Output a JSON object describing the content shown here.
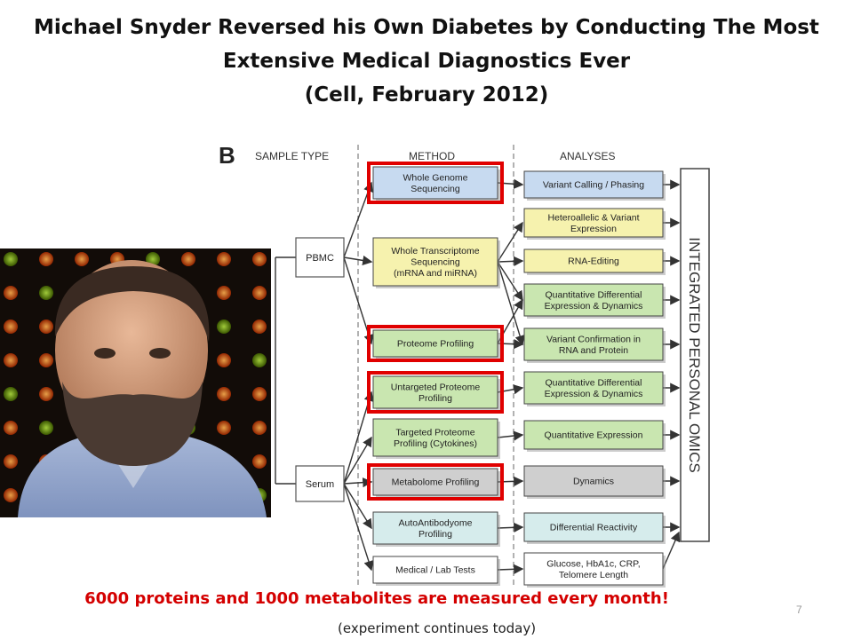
{
  "slide": {
    "title_line1": "Michael Snyder Reversed his Own Diabetes by Conducting The Most",
    "title_line2": "Extensive Medical Diagnostics Ever",
    "title_line3": "(Cell,  February 2012)",
    "bottom_text": "6000 proteins and 1000 metabolites are measured every month!",
    "bottom_note": "(experiment  continues today)",
    "page_number": "7"
  },
  "diagram": {
    "panel_letter": "B",
    "header_sample": "SAMPLE TYPE",
    "header_method": "METHOD",
    "header_analyses": "ANALYSES",
    "integrated_label": "INTEGRATED PERSONAL OMICS",
    "samples": [
      {
        "label": "PBMC"
      },
      {
        "label": "Serum"
      }
    ],
    "methods": [
      {
        "lines": [
          "Whole Genome",
          "Sequencing"
        ],
        "fill": "#c7daf0",
        "highlight": true
      },
      {
        "lines": [
          "Whole Transcriptome",
          "Sequencing",
          "(mRNA and miRNA)"
        ],
        "fill": "#f6f2ae",
        "highlight": false
      },
      {
        "lines": [
          "Proteome Profiling"
        ],
        "fill": "#c9e6b0",
        "highlight": true
      },
      {
        "lines": [
          "Untargeted Proteome",
          "Profiling"
        ],
        "fill": "#c9e6b0",
        "highlight": true
      },
      {
        "lines": [
          "Targeted Proteome",
          "Profiling (Cytokines)"
        ],
        "fill": "#c9e6b0",
        "highlight": false
      },
      {
        "lines": [
          "Metabolome Profiling"
        ],
        "fill": "#cfcfcf",
        "highlight": true
      },
      {
        "lines": [
          "AutoAntibodyome",
          "Profiling"
        ],
        "fill": "#d6ecec",
        "highlight": false
      },
      {
        "lines": [
          "Medical / Lab Tests"
        ],
        "fill": "#ffffff",
        "highlight": false
      }
    ],
    "analyses": [
      {
        "lines": [
          "Variant Calling / Phasing"
        ],
        "fill": "#c7daf0"
      },
      {
        "lines": [
          "Heteroallelic & Variant",
          "Expression"
        ],
        "fill": "#f6f2ae"
      },
      {
        "lines": [
          "RNA-Editing"
        ],
        "fill": "#f6f2ae"
      },
      {
        "lines": [
          "Quantitative Differential",
          "Expression & Dynamics"
        ],
        "fill": "#c9e6b0"
      },
      {
        "lines": [
          "Variant Confirmation in",
          "RNA and Protein"
        ],
        "fill": "#c9e6b0"
      },
      {
        "lines": [
          "Quantitative Differential",
          "Expression & Dynamics"
        ],
        "fill": "#c9e6b0"
      },
      {
        "lines": [
          "Quantitative Expression"
        ],
        "fill": "#c9e6b0"
      },
      {
        "lines": [
          "Dynamics"
        ],
        "fill": "#cfcfcf"
      },
      {
        "lines": [
          "Differential Reactivity"
        ],
        "fill": "#d6ecec"
      },
      {
        "lines": [
          "Glucose, HbA1c, CRP,",
          "Telomere Length"
        ],
        "fill": "#ffffff"
      }
    ],
    "colors": {
      "highlight": "#e00000",
      "arrow": "#333333"
    }
  },
  "photo": {
    "subject": "portrait-photo"
  }
}
